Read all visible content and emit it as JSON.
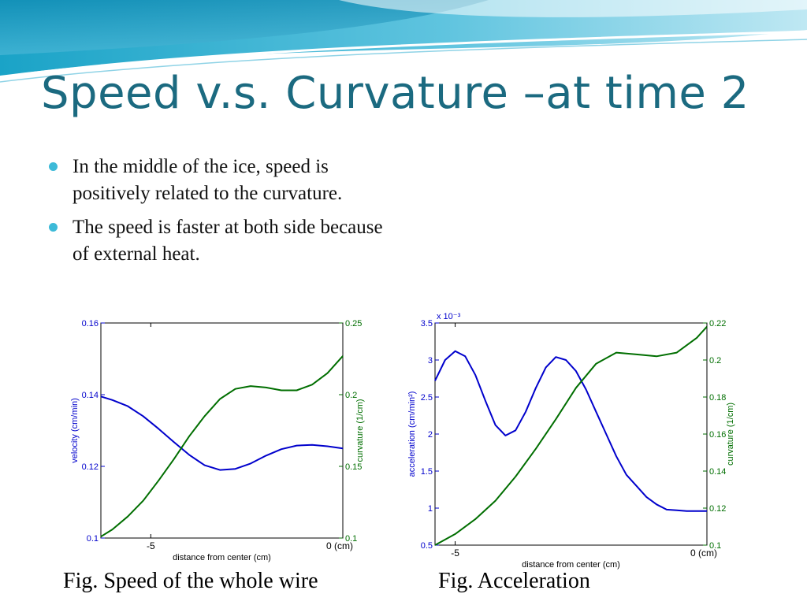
{
  "slide": {
    "title": "Speed v.s. Curvature –at time 2",
    "bullets": [
      "In the middle of the ice, speed is positively related to the curvature.",
      "The speed is faster at both side because of external heat."
    ],
    "captions": [
      "Fig. Speed of the whole wire",
      "Fig. Acceleration"
    ]
  },
  "colors": {
    "title": "#1b6a80",
    "bullet": "#3dbad8",
    "blue_series": "#0000cc",
    "green_series": "#006e00"
  },
  "chart_data": [
    {
      "type": "line",
      "title": "",
      "xlabel": "distance from center (cm)",
      "ylabel": "velocity (cm/min)",
      "y2label": "curvature (1/cm)",
      "xlim": [
        -6.3,
        0
      ],
      "ylim": [
        0.1,
        0.16
      ],
      "y2lim": [
        0.1,
        0.25
      ],
      "x_ticks": [
        -5,
        0
      ],
      "x_tick_labels": [
        "-5",
        "0 (cm)"
      ],
      "y_ticks": [
        0.1,
        0.12,
        0.14,
        0.16
      ],
      "y_tick_labels": [
        "0.1",
        "0.12",
        "0.14",
        "0.16"
      ],
      "y2_ticks": [
        0.1,
        0.15,
        0.2,
        0.25
      ],
      "y2_tick_labels": [
        "0.1",
        "0.15",
        "0.2",
        "0.25"
      ],
      "grid": false,
      "series": [
        {
          "axis": "left",
          "color": "#0000cc",
          "x": [
            -6.3,
            -6.0,
            -5.6,
            -5.2,
            -4.8,
            -4.4,
            -4.0,
            -3.6,
            -3.2,
            -2.8,
            -2.4,
            -2.0,
            -1.6,
            -1.2,
            -0.8,
            -0.4,
            0.0
          ],
          "y": [
            0.1395,
            0.1385,
            0.1368,
            0.134,
            0.1305,
            0.1268,
            0.1232,
            0.1203,
            0.119,
            0.1193,
            0.1208,
            0.123,
            0.1248,
            0.1258,
            0.126,
            0.1256,
            0.125
          ]
        },
        {
          "axis": "right",
          "color": "#006e00",
          "x": [
            -6.3,
            -6.0,
            -5.6,
            -5.2,
            -4.8,
            -4.4,
            -4.0,
            -3.6,
            -3.2,
            -2.8,
            -2.4,
            -2.0,
            -1.6,
            -1.2,
            -0.8,
            -0.4,
            0.0
          ],
          "y": [
            0.101,
            0.106,
            0.115,
            0.126,
            0.14,
            0.155,
            0.171,
            0.185,
            0.197,
            0.204,
            0.206,
            0.205,
            0.203,
            0.203,
            0.207,
            0.215,
            0.227
          ]
        }
      ]
    },
    {
      "type": "line",
      "title": "",
      "xlabel": "distance from center (cm)",
      "ylabel": "acceleration (cm/min²)",
      "y2label": "curvature (1/cm)",
      "axis_multiplier": "x 10⁻³",
      "xlim": [
        -5.4,
        0
      ],
      "ylim": [
        0.5,
        3.5
      ],
      "y2lim": [
        0.1,
        0.22
      ],
      "x_ticks": [
        -5,
        0
      ],
      "x_tick_labels": [
        "-5",
        "0 (cm)"
      ],
      "y_ticks": [
        0.5,
        1,
        1.5,
        2,
        2.5,
        3,
        3.5
      ],
      "y_tick_labels": [
        "0.5",
        "1",
        "1.5",
        "2",
        "2.5",
        "3",
        "3.5"
      ],
      "y2_ticks": [
        0.1,
        0.12,
        0.14,
        0.16,
        0.18,
        0.2,
        0.22
      ],
      "y2_tick_labels": [
        "0.1",
        "0.12",
        "0.14",
        "0.16",
        "0.18",
        "0.2",
        "0.22"
      ],
      "grid": false,
      "series": [
        {
          "axis": "left",
          "color": "#0000cc",
          "x": [
            -5.4,
            -5.2,
            -5.0,
            -4.8,
            -4.6,
            -4.4,
            -4.2,
            -4.0,
            -3.8,
            -3.6,
            -3.4,
            -3.2,
            -3.0,
            -2.8,
            -2.6,
            -2.4,
            -2.2,
            -2.0,
            -1.8,
            -1.6,
            -1.4,
            -1.2,
            -1.0,
            -0.8,
            -0.6,
            -0.4,
            -0.2,
            0.0
          ],
          "y": [
            2.72,
            3.0,
            3.12,
            3.05,
            2.8,
            2.45,
            2.12,
            1.98,
            2.05,
            2.3,
            2.62,
            2.9,
            3.04,
            3.0,
            2.85,
            2.6,
            2.3,
            2.0,
            1.7,
            1.45,
            1.3,
            1.15,
            1.05,
            0.98,
            0.97,
            0.96,
            0.96,
            0.96
          ]
        },
        {
          "axis": "right",
          "color": "#006e00",
          "x": [
            -5.4,
            -5.0,
            -4.6,
            -4.2,
            -3.8,
            -3.4,
            -3.0,
            -2.6,
            -2.2,
            -1.8,
            -1.4,
            -1.0,
            -0.6,
            -0.2,
            0.0
          ],
          "y": [
            0.1,
            0.106,
            0.114,
            0.124,
            0.137,
            0.152,
            0.168,
            0.185,
            0.198,
            0.204,
            0.203,
            0.202,
            0.204,
            0.212,
            0.218
          ]
        }
      ]
    }
  ]
}
